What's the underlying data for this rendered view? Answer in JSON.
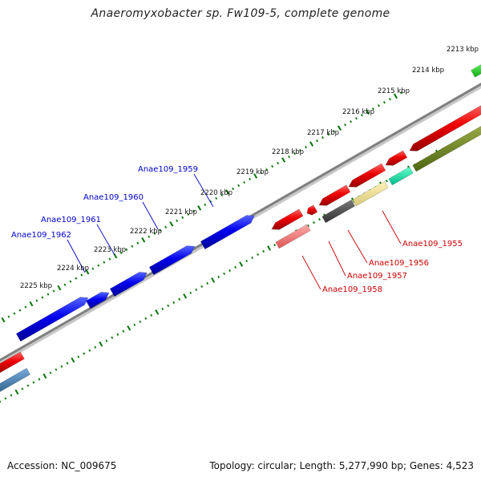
{
  "title": "Anaeromyxobacter sp. Fw109-5, complete genome",
  "footer": {
    "accession": "Accession: NC_009675",
    "summary": "Topology: circular; Length: 5,277,990 bp; Genes: 4,523"
  },
  "scale": {
    "labels": [
      "2213 kbp",
      "2214 kbp",
      "2215 kbp",
      "2216 kbp",
      "2217 kbp",
      "2218 kbp",
      "2219 kbp",
      "2220 kbp",
      "2221 kbp",
      "2222 kbp",
      "2223 kbp",
      "2224 kbp",
      "2225 kbp"
    ]
  },
  "gene_labels": [
    {
      "text": "Anae109_1959",
      "color": "#0000cc"
    },
    {
      "text": "Anae109_1960",
      "color": "#0000cc"
    },
    {
      "text": "Anae109_1961",
      "color": "#0000cc"
    },
    {
      "text": "Anae109_1962",
      "color": "#0000cc"
    },
    {
      "text": "Anae109_1955",
      "color": "#cc0000"
    },
    {
      "text": "Anae109_1956",
      "color": "#cc0000"
    },
    {
      "text": "Anae109_1957",
      "color": "#cc0000"
    },
    {
      "text": "Anae109_1958",
      "color": "#cc0000"
    }
  ],
  "colors": {
    "forward_cds": "#0000ff",
    "reverse_cds": "#ff0000",
    "backbone": "#808080",
    "tick": "#007700"
  }
}
